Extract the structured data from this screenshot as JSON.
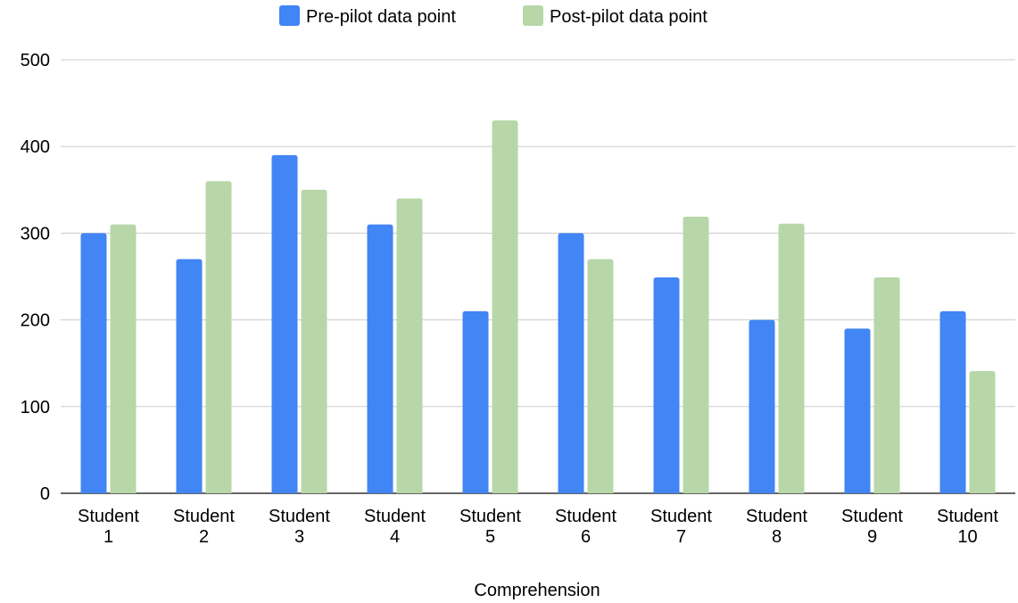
{
  "chart_data": {
    "type": "bar",
    "title": "",
    "xlabel": "Comprehension",
    "ylabel": "",
    "ylim": [
      0,
      500
    ],
    "yticks": [
      0,
      100,
      200,
      300,
      400,
      500
    ],
    "grid": true,
    "legend_position": "top",
    "categories": [
      [
        "Student",
        "1"
      ],
      [
        "Student",
        "2"
      ],
      [
        "Student",
        "3"
      ],
      [
        "Student",
        "4"
      ],
      [
        "Student",
        "5"
      ],
      [
        "Student",
        "6"
      ],
      [
        "Student",
        "7"
      ],
      [
        "Student",
        "8"
      ],
      [
        "Student",
        "9"
      ],
      [
        "Student",
        "10"
      ]
    ],
    "series": [
      {
        "name": "Pre-pilot data point",
        "color": "#4285f4",
        "values": [
          300,
          270,
          390,
          310,
          210,
          300,
          249,
          200,
          190,
          210
        ]
      },
      {
        "name": "Post-pilot data point",
        "color": "#b7d7a8",
        "values": [
          310,
          360,
          350,
          340,
          430,
          270,
          319,
          311,
          249,
          141
        ]
      }
    ]
  }
}
